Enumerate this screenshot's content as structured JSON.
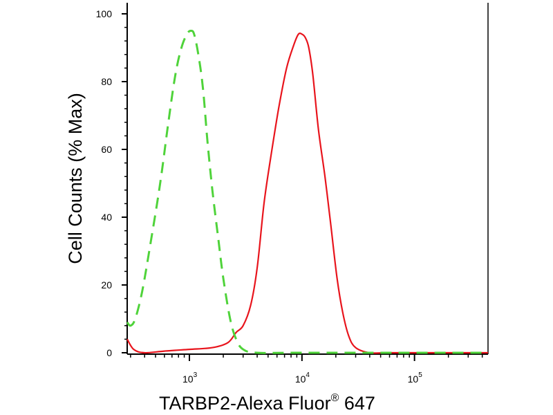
{
  "chart_data": {
    "type": "line",
    "xlabel": "TARBP2-Alexa Fluor",
    "xlabel_sup": "®",
    "xlabel_suffix": " 647",
    "ylabel": "Cell Counts (% Max)",
    "x_scale": "log",
    "xlim": [
      280,
      450000
    ],
    "ylim": [
      0,
      100
    ],
    "y_ticks": [
      0,
      20,
      40,
      60,
      80,
      100
    ],
    "x_major_ticks": [
      {
        "value": 1000,
        "base": "10",
        "exp": "3"
      },
      {
        "value": 10000,
        "base": "10",
        "exp": "4"
      },
      {
        "value": 100000,
        "base": "10",
        "exp": "5"
      }
    ],
    "grid": false,
    "series": [
      {
        "style": "solid",
        "color": "#e8141c",
        "x": [
          280,
          320,
          400,
          600,
          1000,
          1600,
          2200,
          2600,
          3000,
          3500,
          4000,
          4600,
          5300,
          6200,
          7300,
          8500,
          9300,
          10000,
          10700,
          11500,
          12500,
          14000,
          16000,
          18000,
          20500,
          23000,
          26000,
          30000,
          40000,
          60000,
          100000,
          450000
        ],
        "y": [
          4,
          1,
          0,
          0.5,
          1,
          1.5,
          3,
          6,
          8,
          14,
          25,
          44,
          58,
          72,
          84,
          91,
          94,
          94,
          93,
          90,
          82,
          66,
          52,
          38,
          22,
          12,
          5,
          1.5,
          0,
          0,
          0,
          0
        ]
      },
      {
        "style": "dashed",
        "color": "#4fd33a",
        "x": [
          280,
          300,
          330,
          380,
          450,
          550,
          650,
          750,
          850,
          950,
          1030,
          1100,
          1200,
          1320,
          1450,
          1600,
          1800,
          2000,
          2300,
          2600,
          3000,
          4000,
          10000,
          450000
        ],
        "y": [
          9,
          8,
          10,
          18,
          32,
          50,
          68,
          82,
          90,
          94,
          95,
          94,
          88,
          78,
          62,
          48,
          34,
          22,
          10,
          4,
          1,
          0,
          0,
          0
        ]
      }
    ]
  }
}
